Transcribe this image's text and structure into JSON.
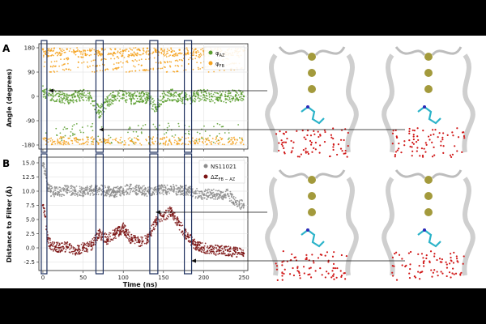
{
  "panels": {
    "a": "A",
    "b": "B"
  },
  "colors": {
    "phi_az": "#5a9e2f",
    "phi_fb": "#f5a11c",
    "ns11021": "#8c8c8c",
    "dz": "#7b1414",
    "highlight": "#1d2f5e",
    "ion": "#a39a3c",
    "ligand": "#2bb3c9",
    "water": "#d11a1a"
  },
  "chart_data": [
    {
      "type": "scatter",
      "title": "",
      "ylabel": "Angle (degrees)",
      "xlabel": "",
      "xlim": [
        -5,
        255
      ],
      "ylim": [
        -195,
        195
      ],
      "yticks": [
        "180",
        "90",
        "0",
        "-90",
        "-180"
      ],
      "grid": true,
      "legend_position": "top-right",
      "series": [
        {
          "name": "φAZ",
          "legend_main": "φ",
          "legend_sub": "AZ",
          "x": [
            0,
            10,
            20,
            30,
            40,
            50,
            60,
            70,
            80,
            90,
            100,
            110,
            120,
            130,
            140,
            150,
            160,
            170,
            180,
            190,
            200,
            210,
            220,
            230,
            240,
            250
          ],
          "y": [
            20,
            5,
            0,
            -10,
            0,
            5,
            -5,
            -60,
            -20,
            0,
            5,
            -10,
            0,
            -5,
            -40,
            0,
            5,
            0,
            -10,
            0,
            5,
            0,
            -5,
            0,
            5,
            0
          ]
        },
        {
          "name": "φFB",
          "legend_main": "φ",
          "legend_sub": "FB",
          "x": [
            0,
            10,
            20,
            30,
            40,
            50,
            60,
            70,
            80,
            90,
            100,
            110,
            120,
            130,
            140,
            150,
            160,
            170,
            180,
            190,
            200,
            210,
            220,
            230,
            240,
            250
          ],
          "y": [
            175,
            170,
            -170,
            175,
            165,
            -175,
            170,
            160,
            -170,
            175,
            168,
            -165,
            172,
            178,
            170,
            -175,
            165,
            172,
            160,
            175,
            168,
            170,
            165,
            172,
            168,
            170
          ]
        }
      ]
    },
    {
      "type": "scatter",
      "title": "",
      "ylabel": "Distance to Filter (Å)",
      "xlabel": "Time (ns)",
      "xlim": [
        -5,
        255
      ],
      "ylim": [
        -4,
        16
      ],
      "xticks": [
        "0",
        "50",
        "100",
        "150",
        "200",
        "250"
      ],
      "yticks": [
        "15.0",
        "12.5",
        "10.0",
        "7.5",
        "5.0",
        "2.5",
        "0.0",
        "-2.5"
      ],
      "grid": true,
      "legend_position": "top-right",
      "series": [
        {
          "name": "NS11021",
          "legend_main": "NS11021",
          "legend_sub": "",
          "x": [
            0,
            3,
            6,
            10,
            20,
            30,
            40,
            50,
            60,
            70,
            80,
            90,
            100,
            110,
            120,
            130,
            140,
            150,
            160,
            170,
            180,
            190,
            200,
            210,
            220,
            230,
            240,
            250
          ],
          "y": [
            14.5,
            13.5,
            10.5,
            10,
            9.8,
            10.2,
            10,
            9.9,
            10.1,
            10.3,
            10,
            9.8,
            10.2,
            10.4,
            10.1,
            10,
            10.3,
            10.2,
            10.4,
            10.1,
            10.2,
            9.6,
            9.4,
            9.5,
            9.3,
            9.5,
            8.0,
            7.5
          ]
        },
        {
          "name": "ΔZFB-AZ",
          "legend_main": "ΔZ",
          "legend_sub": "FB − AZ",
          "x": [
            0,
            3,
            6,
            10,
            20,
            30,
            40,
            50,
            60,
            70,
            80,
            90,
            100,
            110,
            120,
            130,
            140,
            150,
            160,
            170,
            180,
            190,
            200,
            210,
            220,
            230,
            240,
            250
          ],
          "y": [
            7.5,
            5.5,
            1.5,
            0.5,
            0,
            0.2,
            -0.5,
            0,
            0.3,
            2.5,
            1.5,
            2.5,
            3.5,
            1.5,
            1.0,
            1.5,
            4.5,
            5.5,
            6.5,
            4.0,
            2.0,
            0.5,
            0,
            -0.3,
            -0.5,
            -0.5,
            -0.8,
            -1.0
          ]
        }
      ]
    }
  ],
  "highlight_windows": [
    {
      "panel": 0,
      "x": [
        0,
        3
      ]
    },
    {
      "panel": 0,
      "x": [
        68,
        73
      ]
    },
    {
      "panel": 0,
      "x": [
        135,
        141
      ]
    },
    {
      "panel": 0,
      "x": [
        178,
        183
      ]
    },
    {
      "panel": 1,
      "x": [
        0,
        3
      ]
    },
    {
      "panel": 1,
      "x": [
        68,
        73
      ]
    },
    {
      "panel": 1,
      "x": [
        135,
        141
      ]
    },
    {
      "panel": 1,
      "x": [
        178,
        183
      ]
    }
  ]
}
